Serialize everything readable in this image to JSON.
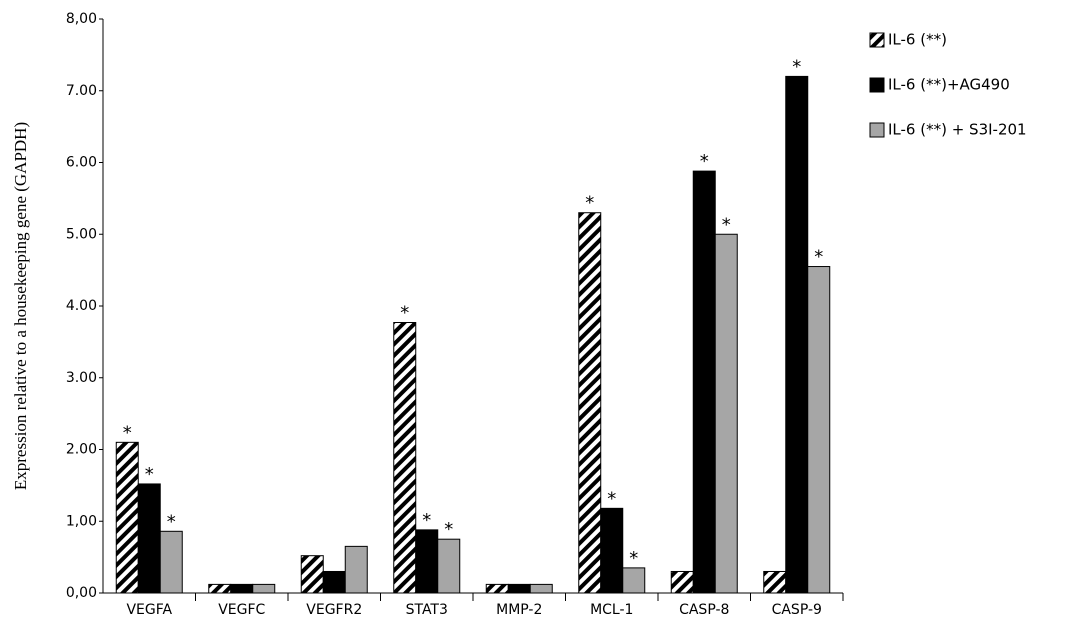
{
  "chart_data": {
    "type": "bar",
    "y_label": "Expression relative to a housekeeping gene (GAPDH)",
    "categories": [
      "VEGFA",
      "VEGFC",
      "VEGFR2",
      "STAT3",
      "MMP-2",
      "MCL-1",
      "CASP-8",
      "CASP-9"
    ],
    "series": [
      {
        "name": "IL-6 (**)",
        "color": "#000000",
        "pattern": "hatch",
        "values": [
          2.1,
          0.12,
          0.52,
          3.77,
          0.12,
          5.3,
          0.3,
          0.3
        ],
        "significance": [
          "*",
          null,
          null,
          "*",
          null,
          "*",
          null,
          null
        ]
      },
      {
        "name": "IL-6 (**)+AG490",
        "color": "#000000",
        "values": [
          1.52,
          0.12,
          0.3,
          0.88,
          0.12,
          1.18,
          5.88,
          7.2
        ],
        "significance": [
          "*",
          null,
          null,
          "*",
          null,
          "*",
          "*",
          "*"
        ]
      },
      {
        "name": "IL-6 (**) + S3I-201",
        "color": "#a6a6a6",
        "values": [
          0.86,
          0.12,
          0.65,
          0.75,
          0.12,
          0.35,
          5.0,
          4.55
        ],
        "significance": [
          "*",
          null,
          null,
          "*",
          null,
          "*",
          "*",
          "*"
        ]
      }
    ],
    "ylim": [
      0,
      8
    ],
    "yticks": [
      {
        "value": 0,
        "label": "0,00"
      },
      {
        "value": 1,
        "label": "1,00"
      },
      {
        "value": 2,
        "label": "2.00"
      },
      {
        "value": 3,
        "label": "3.00"
      },
      {
        "value": 4,
        "label": "4.00"
      },
      {
        "value": 5,
        "label": "5.00"
      },
      {
        "value": 6,
        "label": "6.00"
      },
      {
        "value": 7,
        "label": "7.00"
      },
      {
        "value": 8,
        "label": "8,00"
      }
    ],
    "legend": "right"
  }
}
